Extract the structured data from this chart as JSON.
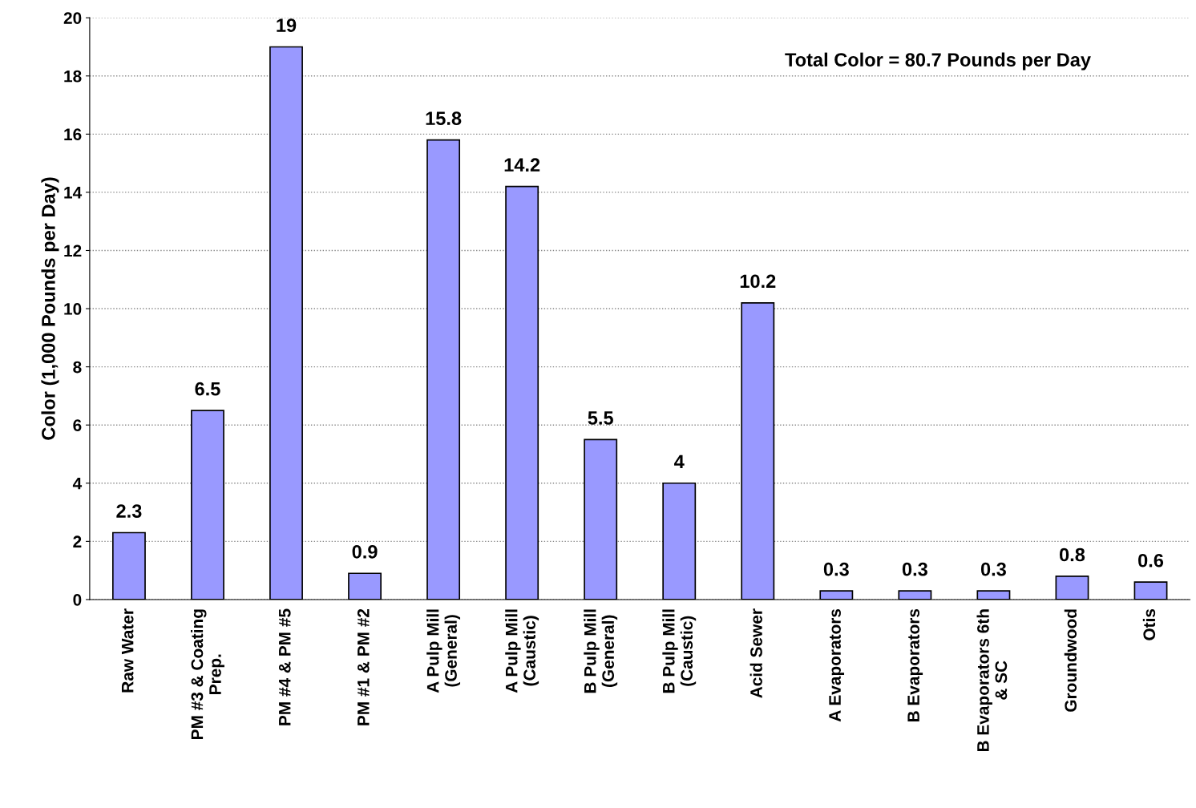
{
  "chart_data": {
    "type": "bar",
    "ylabel": "Color (1,000 Pounds per Day)",
    "categories": [
      "Raw Water",
      "PM #3 & Coating\nPrep.",
      "PM #4 & PM #5",
      "PM #1 & PM #2",
      "A Pulp Mill\n(General)",
      "A Pulp Mill\n(Caustic)",
      "B Pulp Mill\n(General)",
      "B Pulp Mill\n(Caustic)",
      "Acid Sewer",
      "A Evaporators",
      "B Evaporators",
      "B Evaporators 6th\n& SC",
      "Groundwood",
      "Otis"
    ],
    "values": [
      2.3,
      6.5,
      19,
      0.9,
      15.8,
      14.2,
      5.5,
      4,
      10.2,
      0.3,
      0.3,
      0.3,
      0.8,
      0.6
    ],
    "color": "#9999ff",
    "ylim": [
      0,
      20
    ],
    "yticks": [
      0,
      2,
      4,
      6,
      8,
      10,
      12,
      14,
      16,
      18,
      20
    ],
    "grid": "y",
    "data_labels": true,
    "legend": false,
    "annotations": [
      "Total Color = 80.7 Pounds per Day"
    ]
  }
}
